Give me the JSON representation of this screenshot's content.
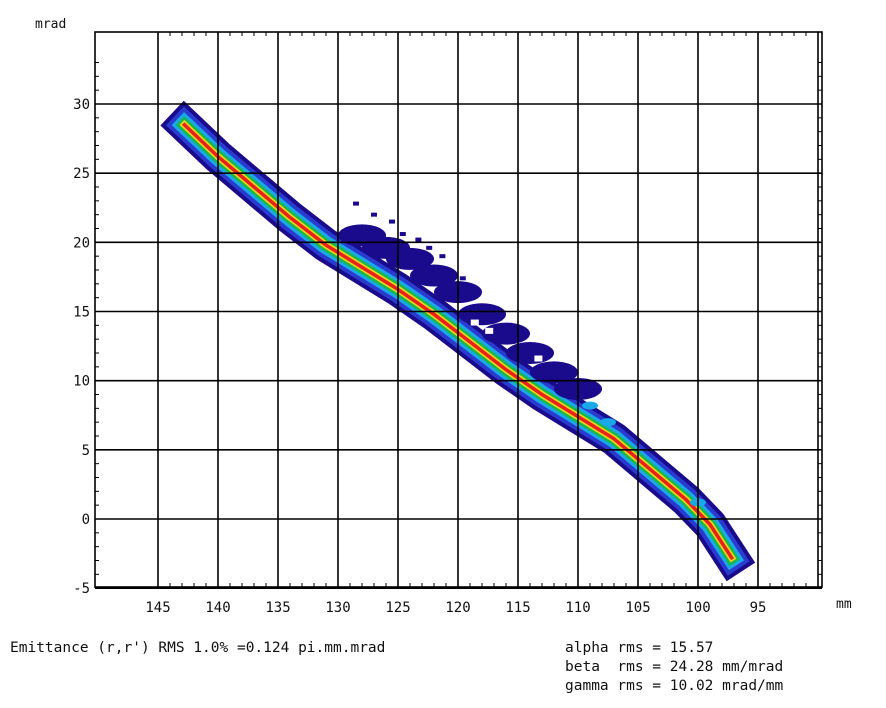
{
  "chart_data": {
    "type": "heatmap",
    "title": "",
    "xlabel": "mm",
    "ylabel": "mrad",
    "x_ticks": [
      "145",
      "140",
      "135",
      "130",
      "125",
      "120",
      "115",
      "110",
      "105",
      "100",
      "95"
    ],
    "y_ticks": [
      "-5",
      "0",
      "5",
      "10",
      "15",
      "20",
      "25",
      "30"
    ],
    "xlim": [
      145,
      95
    ],
    "ylim": [
      -5,
      30
    ],
    "x_reversed": true,
    "grid": true,
    "colorscale": [
      "#1a0a8c",
      "#2a3cd0",
      "#19a8e8",
      "#17b84a",
      "#e8d21a",
      "#e8221a"
    ],
    "ridge": [
      {
        "x": 142.8,
        "y": 28.5
      },
      {
        "x": 140,
        "y": 26.2
      },
      {
        "x": 137,
        "y": 24.0
      },
      {
        "x": 134,
        "y": 21.8
      },
      {
        "x": 131,
        "y": 19.8
      },
      {
        "x": 128,
        "y": 18.2
      },
      {
        "x": 125,
        "y": 16.6
      },
      {
        "x": 122,
        "y": 14.8
      },
      {
        "x": 119,
        "y": 12.8
      },
      {
        "x": 116,
        "y": 10.8
      },
      {
        "x": 113,
        "y": 9.0
      },
      {
        "x": 110,
        "y": 7.4
      },
      {
        "x": 107,
        "y": 5.8
      },
      {
        "x": 104,
        "y": 3.6
      },
      {
        "x": 101,
        "y": 1.4
      },
      {
        "x": 99,
        "y": -0.4
      },
      {
        "x": 97.2,
        "y": -2.8
      }
    ]
  },
  "stats": {
    "line1": "Emittance (r,r') RMS 1.0% =0.124 pi.mm.mrad",
    "alpha": "alpha rms = 15.57",
    "beta": "beta  rms = 24.28 mm/mrad",
    "gamma": "gamma rms = 10.02 mrad/mm"
  }
}
